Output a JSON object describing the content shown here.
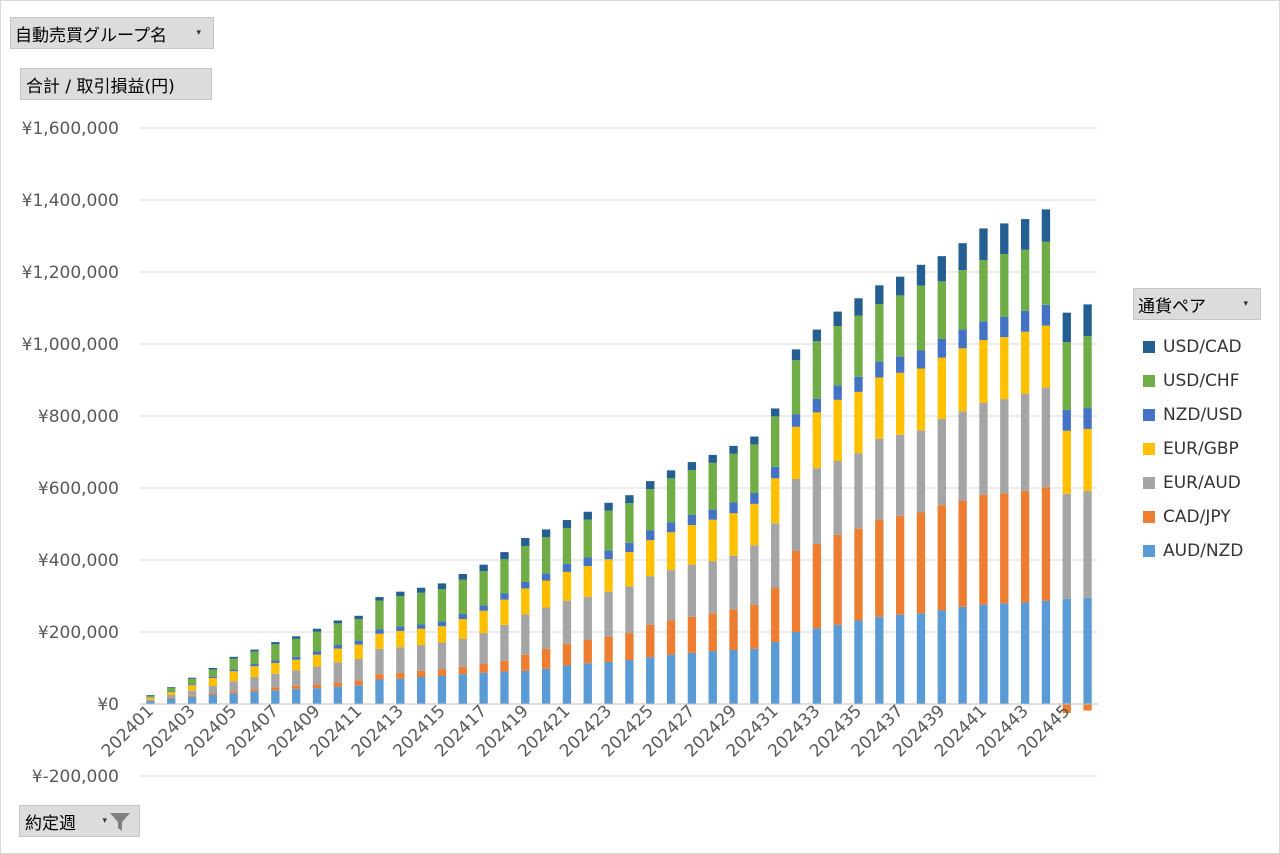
{
  "filters": {
    "group_label": "自動売買グループ名",
    "value_label": "合計 / 取引損益(円)",
    "week_label": "約定週",
    "legend_label": "通貨ペア"
  },
  "icons": {
    "dropdown": "dropdown-arrow-icon",
    "filter": "filter-funnel-icon"
  },
  "chart_data": {
    "type": "bar",
    "stacked": true,
    "yticks": [
      "¥1,600,000",
      "¥1,400,000",
      "¥1,200,000",
      "¥1,000,000",
      "¥800,000",
      "¥600,000",
      "¥400,000",
      "¥200,000",
      "¥0",
      "¥-200,000"
    ],
    "ylim": [
      -200000,
      1600000
    ],
    "grid": true,
    "legend_position": "right",
    "categories": [
      "202401",
      "202402",
      "202403",
      "202404",
      "202405",
      "202406",
      "202407",
      "202408",
      "202409",
      "202410",
      "202411",
      "202412",
      "202413",
      "202414",
      "202415",
      "202416",
      "202417",
      "202418",
      "202419",
      "202420",
      "202421",
      "202422",
      "202423",
      "202424",
      "202425",
      "202426",
      "202427",
      "202428",
      "202429",
      "202430",
      "202431",
      "202432",
      "202433",
      "202434",
      "202435",
      "202436",
      "202437",
      "202438",
      "202439",
      "202440",
      "202441",
      "202442",
      "202443",
      "202444",
      "202445",
      "202446"
    ],
    "xtick_labels": [
      "202401",
      "202403",
      "202405",
      "202407",
      "202409",
      "202411",
      "202413",
      "202415",
      "202417",
      "202419",
      "202421",
      "202423",
      "202425",
      "202427",
      "202429",
      "202431",
      "202433",
      "202435",
      "202437",
      "202439",
      "202441",
      "202443",
      "202445"
    ],
    "series": [
      {
        "name": "AUD/NZD",
        "color": "#5b9bd5",
        "values": [
          8000,
          15000,
          20000,
          25000,
          30000,
          35000,
          38000,
          42000,
          44000,
          48000,
          52000,
          68000,
          70000,
          75000,
          78000,
          83000,
          87000,
          90000,
          92000,
          98000,
          107000,
          113000,
          117000,
          122000,
          130000,
          137000,
          142000,
          147000,
          150000,
          153000,
          172000,
          200000,
          210000,
          220000,
          232000,
          242000,
          248000,
          252000,
          260000,
          270000,
          276000,
          280000,
          282000,
          287000,
          292000,
          295000
        ]
      },
      {
        "name": "CAD/JPY",
        "color": "#ed7d31",
        "values": [
          1000,
          2000,
          3000,
          4000,
          5000,
          6000,
          8000,
          9000,
          10000,
          12000,
          13000,
          15000,
          16000,
          17000,
          18000,
          20000,
          25000,
          30000,
          45000,
          55000,
          60000,
          65000,
          70000,
          75000,
          90000,
          95000,
          100000,
          105000,
          112000,
          123000,
          150000,
          225000,
          235000,
          250000,
          255000,
          270000,
          275000,
          280000,
          292000,
          295000,
          305000,
          305000,
          310000,
          315000,
          -25000,
          -18000
        ]
      },
      {
        "name": "EUR/AUD",
        "color": "#a5a5a5",
        "values": [
          4000,
          8000,
          14000,
          21000,
          28000,
          34000,
          38000,
          42000,
          50000,
          56000,
          60000,
          70000,
          72000,
          72000,
          75000,
          78000,
          85000,
          100000,
          112000,
          115000,
          120000,
          120000,
          125000,
          130000,
          135000,
          140000,
          145000,
          145000,
          150000,
          165000,
          180000,
          200000,
          210000,
          205000,
          210000,
          225000,
          225000,
          228000,
          240000,
          248000,
          255000,
          262000,
          270000,
          277000,
          292000,
          297000
        ]
      },
      {
        "name": "EUR/GBP",
        "color": "#ffc000",
        "values": [
          5000,
          8000,
          15000,
          22000,
          28000,
          30000,
          30000,
          30000,
          33000,
          38000,
          40000,
          42000,
          45000,
          45000,
          45000,
          55000,
          62000,
          70000,
          72000,
          75000,
          80000,
          85000,
          90000,
          95000,
          100000,
          105000,
          110000,
          115000,
          118000,
          115000,
          125000,
          145000,
          155000,
          170000,
          170000,
          170000,
          172000,
          172000,
          170000,
          175000,
          175000,
          172000,
          172000,
          172000,
          175000,
          172000
        ]
      },
      {
        "name": "NZD/USD",
        "color": "#4472c4",
        "values": [
          1000,
          2000,
          3000,
          4000,
          5000,
          6000,
          7000,
          8000,
          9000,
          10000,
          11000,
          12000,
          12000,
          12000,
          13000,
          14000,
          15000,
          17000,
          18000,
          20000,
          22000,
          24000,
          25000,
          26000,
          27000,
          28000,
          28000,
          28000,
          30000,
          30000,
          32000,
          35000,
          38000,
          40000,
          42000,
          44000,
          45000,
          50000,
          52000,
          52000,
          52000,
          56000,
          58000,
          58000,
          58000,
          58000
        ]
      },
      {
        "name": "USD/CHF",
        "color": "#70ad47",
        "values": [
          5000,
          10000,
          15000,
          20000,
          30000,
          35000,
          45000,
          50000,
          55000,
          60000,
          60000,
          80000,
          85000,
          88000,
          90000,
          95000,
          95000,
          95000,
          100000,
          100000,
          100000,
          105000,
          110000,
          110000,
          115000,
          122000,
          125000,
          130000,
          135000,
          135000,
          140000,
          150000,
          160000,
          165000,
          170000,
          160000,
          170000,
          180000,
          160000,
          165000,
          170000,
          175000,
          170000,
          175000,
          188000,
          200000
        ]
      },
      {
        "name": "USD/CAD",
        "color": "#255e91",
        "values": [
          1000,
          2000,
          3000,
          4000,
          5000,
          5000,
          6000,
          7000,
          8000,
          8000,
          9000,
          10000,
          12000,
          14000,
          16000,
          16000,
          18000,
          20000,
          22000,
          22000,
          22000,
          22000,
          22000,
          22000,
          22000,
          22000,
          22000,
          22000,
          22000,
          22000,
          22000,
          30000,
          32000,
          40000,
          48000,
          52000,
          52000,
          58000,
          70000,
          75000,
          88000,
          85000,
          85000,
          90000,
          82000,
          88000
        ]
      }
    ]
  }
}
